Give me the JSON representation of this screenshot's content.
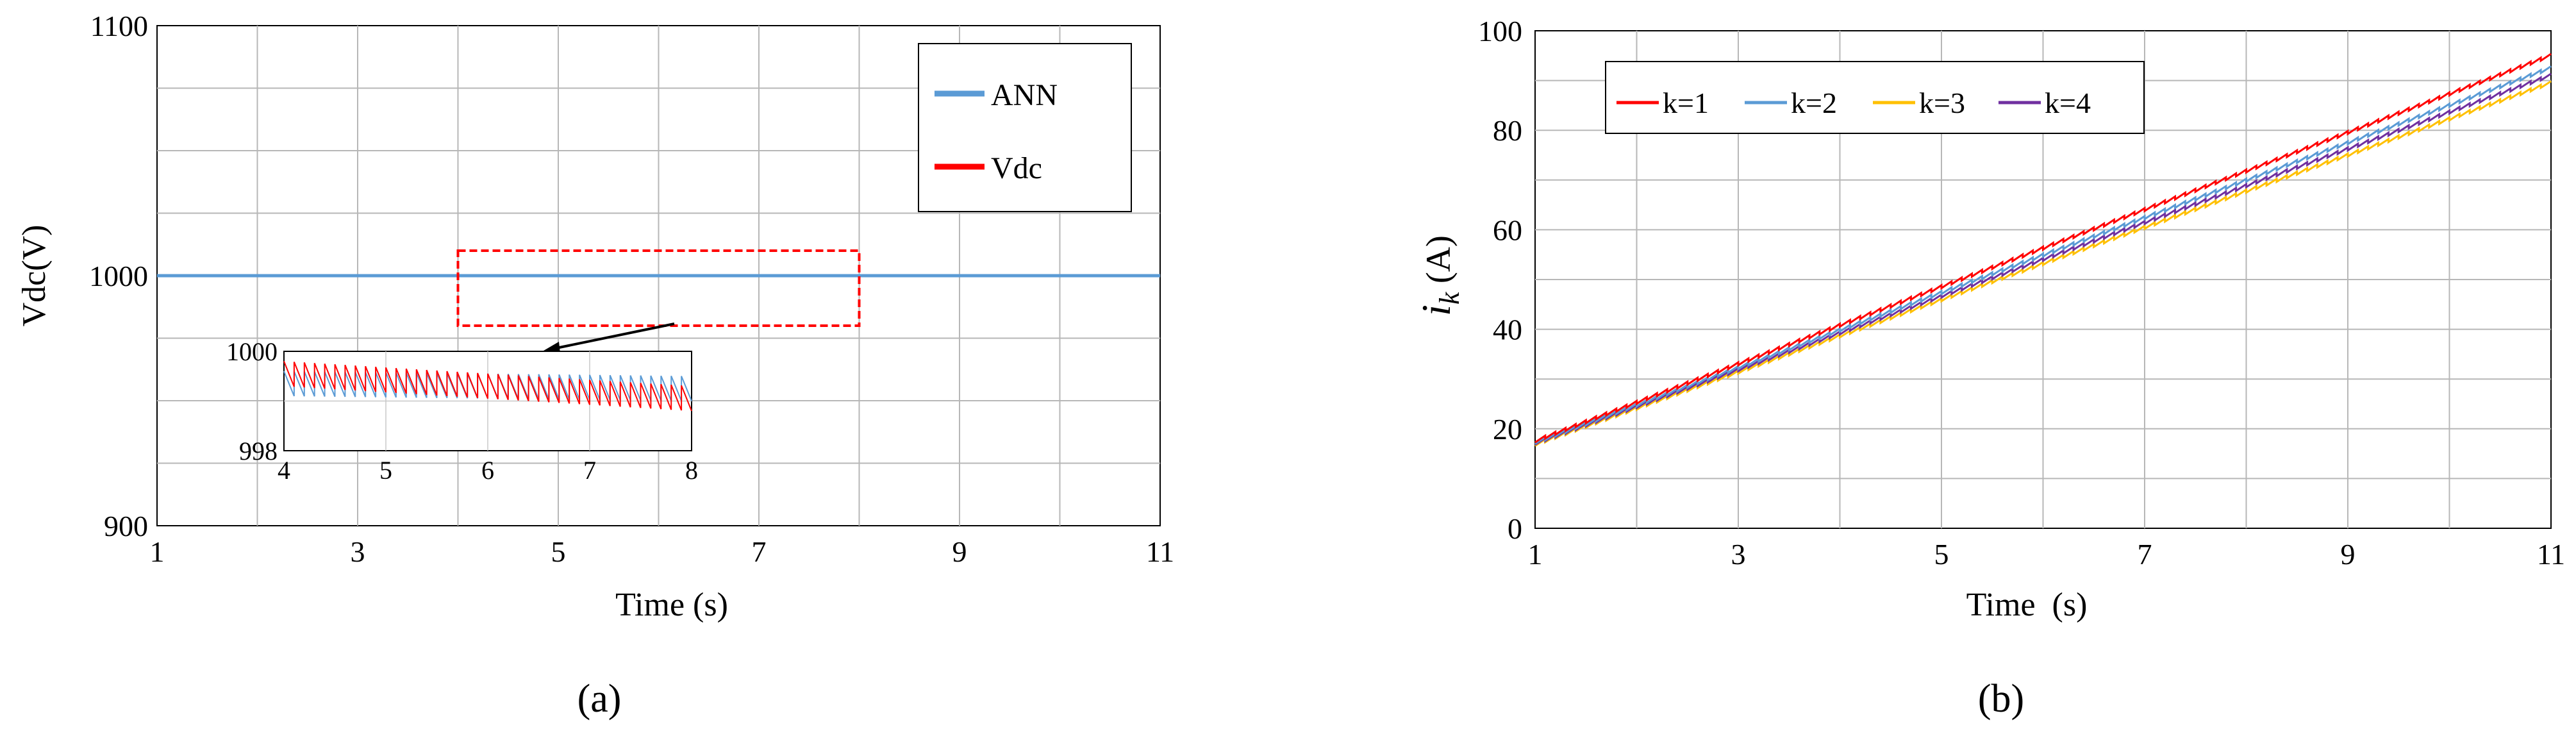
{
  "chart_data": [
    {
      "type": "line",
      "panel_label": "(a)",
      "xlabel": "Time (s)",
      "ylabel": "Vdc(V)",
      "xlim": [
        1,
        11
      ],
      "ylim": [
        900,
        1100
      ],
      "xticks": [
        1,
        3,
        5,
        7,
        9,
        11
      ],
      "yticks": [
        900,
        1000,
        1100
      ],
      "grid": true,
      "legend_position": "top-right",
      "series": [
        {
          "name": "ANN",
          "color": "#5b9bd5",
          "x": [
            1,
            11
          ],
          "y": [
            1000,
            1000
          ]
        },
        {
          "name": "Vdc",
          "color": "#ff0000",
          "x": [
            1,
            11
          ],
          "y": [
            1000,
            1000
          ]
        }
      ],
      "zoom_region": {
        "x": [
          4,
          8
        ],
        "y": [
          980,
          1010
        ],
        "color": "#ff0000"
      },
      "inset": {
        "xlim": [
          4,
          8
        ],
        "ylim": [
          998,
          1000
        ],
        "xticks": [
          4,
          5,
          6,
          7,
          8
        ],
        "yticks": [
          998,
          1000
        ],
        "series": [
          {
            "name": "ANN",
            "color": "#5b9bd5",
            "ripple_period": 0.1,
            "start": [
              999.6,
              999.1
            ],
            "end": [
              999.5,
              999.0
            ]
          },
          {
            "name": "Vdc",
            "color": "#ff0000",
            "ripple_period": 0.1,
            "start": [
              999.8,
              999.3
            ],
            "end": [
              999.3,
              998.8
            ]
          }
        ]
      }
    },
    {
      "type": "line",
      "panel_label": "(b)",
      "xlabel": "Time  (s)",
      "ylabel": "i",
      "ylabel_subscript": "k",
      "ylabel_unit": "(A)",
      "xlim": [
        1,
        11
      ],
      "ylim": [
        0,
        100
      ],
      "xticks": [
        1,
        3,
        5,
        7,
        9,
        11
      ],
      "yticks": [
        0,
        20,
        40,
        60,
        80,
        100
      ],
      "grid": true,
      "legend_position": "top-left",
      "ripple_period": 0.1,
      "ripple_amplitude": 0.6,
      "series": [
        {
          "name": "k=1",
          "color": "#ff0000",
          "x": [
            1,
            11
          ],
          "y": [
            17.5,
            95
          ]
        },
        {
          "name": "k=2",
          "color": "#5b9bd5",
          "x": [
            1,
            11
          ],
          "y": [
            17.2,
            92.5
          ]
        },
        {
          "name": "k=3",
          "color": "#ffc000",
          "x": [
            1,
            11
          ],
          "y": [
            16.8,
            89.5
          ]
        },
        {
          "name": "k=4",
          "color": "#7030a0",
          "x": [
            1,
            11
          ],
          "y": [
            17.0,
            91
          ]
        }
      ]
    }
  ]
}
